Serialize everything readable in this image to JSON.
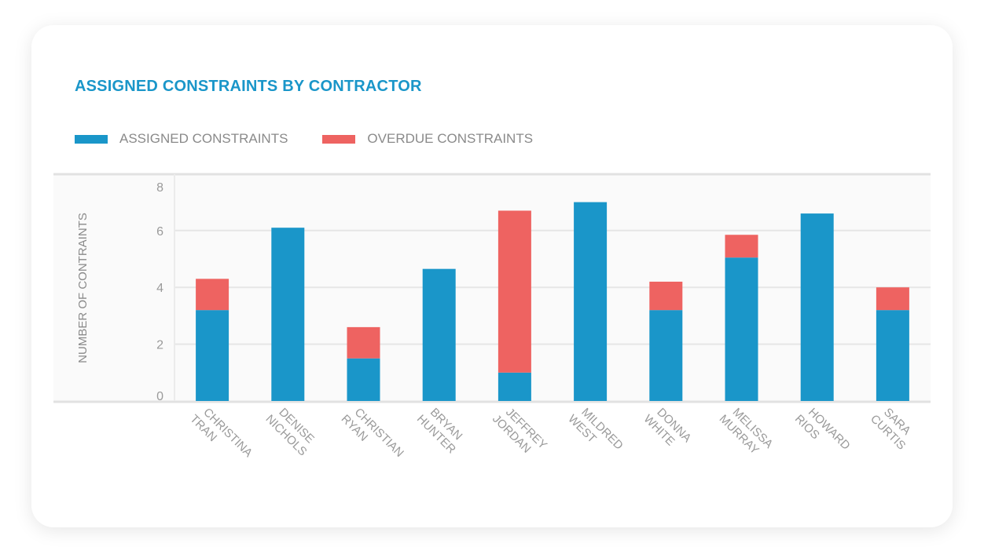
{
  "chart_data": {
    "type": "bar",
    "stacked": true,
    "title": "ASSIGNED CONSTRAINTS BY CONTRACTOR",
    "xlabel": "",
    "ylabel": "NUMBER OF CONTRAINTS",
    "ylim": [
      0,
      8
    ],
    "yticks": [
      0,
      2,
      4,
      6,
      8
    ],
    "grid": true,
    "legend_position": "top-left",
    "categories": [
      "CHRISTINA TRAN",
      "DENISE NICHOLS",
      "CHRISTIAN RYAN",
      "BRYAN HUNTER",
      "JEFFREY JORDAN",
      "MILDRED WEST",
      "DONNA WHITE",
      "MELISSA MURRAY",
      "HOWARD RIOS",
      "SARA CURTIS"
    ],
    "series": [
      {
        "name": "ASSIGNED CONSTRAINTS",
        "color": "#1a96c9",
        "values": [
          3.2,
          6.1,
          1.5,
          4.65,
          1.0,
          7.0,
          3.2,
          5.05,
          6.6,
          3.2
        ]
      },
      {
        "name": "OVERDUE CONSTRAINTS",
        "color": "#ee6361",
        "values": [
          1.1,
          0,
          1.1,
          0,
          5.7,
          0,
          1.0,
          0.8,
          0,
          0.8
        ]
      }
    ]
  }
}
